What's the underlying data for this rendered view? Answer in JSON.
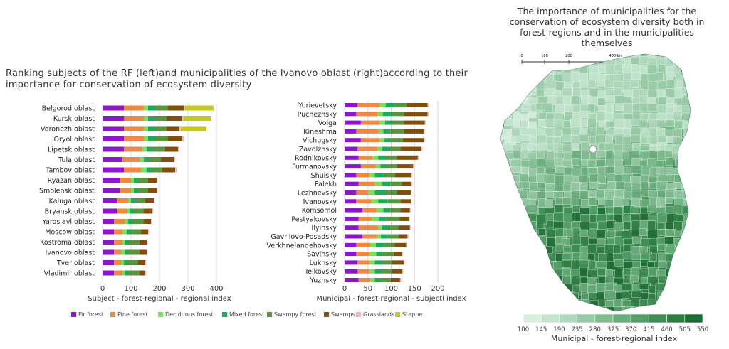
{
  "main_title": "Ranking subjects of the RF (left)and municipalities of the Ivanovo oblast (right)according to their importance for conservation of ecosystem diversity",
  "map_title": "The importance of municipalities for the conservation of ecosystem diversity both in forest-regions and in the municipalities themselves",
  "legend": [
    {
      "name": "Fir forest",
      "color": "#8a17c9"
    },
    {
      "name": "Pine forest",
      "color": "#ee8845"
    },
    {
      "name": "Deciduous forest",
      "color": "#79e159"
    },
    {
      "name": "Mixed forest",
      "color": "#1fa85f"
    },
    {
      "name": "Swampy forest",
      "color": "#5a9440"
    },
    {
      "name": "Swamps",
      "color": "#7f4f0c"
    },
    {
      "name": "Grasslands",
      "color": "#f4b4c3"
    },
    {
      "name": "Steppe",
      "color": "#c6ca1c"
    }
  ],
  "chart_data": [
    {
      "type": "bar",
      "orientation": "horizontal",
      "stacked": true,
      "xlabel": "Subject - forest-regional - regional index",
      "xlim": [
        0,
        400
      ],
      "xticks": [
        0,
        100,
        200,
        300,
        400
      ],
      "categories": [
        "Belgorod oblast",
        "Kursk oblast",
        "Voronezh oblast",
        "Oryol oblast",
        "Lipetsk oblast",
        "Tula oblast",
        "Tambov oblast",
        "Ryazan oblast",
        "Smolensk oblast",
        "Kaluga oblast",
        "Bryansk oblast",
        "Yaroslavl oblast",
        "Moscow oblast",
        "Kostroma oblast",
        "Ivanovo oblast",
        "Tver oblast",
        "Vladimir oblast"
      ],
      "series": [
        {
          "name": "Fir forest",
          "values": [
            75,
            75,
            75,
            75,
            75,
            70,
            75,
            60,
            60,
            50,
            50,
            40,
            40,
            40,
            40,
            40,
            40
          ]
        },
        {
          "name": "Pine forest",
          "values": [
            70,
            70,
            70,
            70,
            65,
            60,
            60,
            40,
            40,
            40,
            35,
            40,
            30,
            30,
            25,
            25,
            30
          ]
        },
        {
          "name": "Deciduous forest",
          "values": [
            15,
            15,
            15,
            15,
            15,
            15,
            20,
            10,
            10,
            10,
            10,
            10,
            15,
            10,
            15,
            10,
            10
          ]
        },
        {
          "name": "Mixed forest",
          "values": [
            25,
            25,
            25,
            25,
            20,
            20,
            20,
            15,
            15,
            15,
            15,
            15,
            15,
            15,
            10,
            10,
            10
          ]
        },
        {
          "name": "Swampy forest",
          "values": [
            45,
            40,
            40,
            45,
            45,
            40,
            35,
            35,
            35,
            35,
            35,
            40,
            35,
            35,
            40,
            40,
            40
          ]
        },
        {
          "name": "Swamps",
          "values": [
            55,
            55,
            45,
            50,
            45,
            45,
            45,
            30,
            30,
            30,
            30,
            25,
            25,
            25,
            25,
            25,
            20
          ]
        },
        {
          "name": "Grasslands",
          "values": [
            5,
            5,
            5,
            5,
            5,
            5,
            5,
            3,
            3,
            3,
            3,
            3,
            3,
            3,
            3,
            3,
            3
          ]
        },
        {
          "name": "Steppe",
          "values": [
            100,
            95,
            90,
            0,
            0,
            0,
            0,
            0,
            0,
            0,
            0,
            0,
            0,
            0,
            0,
            0,
            0
          ]
        }
      ]
    },
    {
      "type": "bar",
      "orientation": "horizontal",
      "stacked": true,
      "xlabel": "Municipal - forest-regional - subjectl index",
      "xlim": [
        0,
        200
      ],
      "xticks": [
        0,
        50,
        100,
        150,
        200
      ],
      "categories": [
        "Yurievetsky",
        "Puchezhsky",
        "Volga",
        "Kineshma",
        "Vichugsky",
        "Zavolzhsky",
        "Rodnikovsky",
        "Furmanovsky",
        "Shuisky",
        "Palekh",
        "Lezhnevsky",
        "Ivanovsky",
        "Komsomol",
        "Pestyakovsky",
        "Ilyinsky",
        "Gavrilovo-Posadsky",
        "Verkhnelandehovsky",
        "Savinsky",
        "Lukhsky",
        "Teikovsky",
        "Yuzhsky"
      ],
      "series": [
        {
          "name": "Fir forest",
          "values": [
            28,
            25,
            35,
            25,
            35,
            28,
            30,
            35,
            25,
            30,
            25,
            25,
            38,
            30,
            30,
            38,
            25,
            25,
            28,
            28,
            30
          ]
        },
        {
          "name": "Pine forest",
          "values": [
            48,
            45,
            40,
            48,
            40,
            42,
            30,
            32,
            28,
            35,
            25,
            32,
            30,
            28,
            42,
            30,
            30,
            28,
            25,
            25,
            25
          ]
        },
        {
          "name": "Deciduous forest",
          "values": [
            12,
            12,
            12,
            10,
            10,
            10,
            12,
            10,
            12,
            15,
            15,
            15,
            15,
            15,
            8,
            10,
            12,
            15,
            12,
            12,
            10
          ]
        },
        {
          "name": "Mixed forest",
          "values": [
            20,
            18,
            15,
            15,
            12,
            15,
            15,
            10,
            18,
            18,
            22,
            20,
            15,
            15,
            15,
            15,
            18,
            12,
            15,
            15,
            12
          ]
        },
        {
          "name": "Swampy forest",
          "values": [
            25,
            28,
            25,
            30,
            28,
            25,
            25,
            25,
            25,
            25,
            25,
            28,
            22,
            30,
            20,
            22,
            22,
            25,
            22,
            22,
            22
          ]
        },
        {
          "name": "Swamps",
          "values": [
            45,
            50,
            45,
            42,
            45,
            45,
            45,
            35,
            35,
            20,
            30,
            22,
            20,
            20,
            25,
            20,
            25,
            18,
            25,
            22,
            20
          ]
        },
        {
          "name": "Grasslands",
          "values": [
            2,
            2,
            2,
            2,
            2,
            2,
            2,
            2,
            2,
            2,
            2,
            2,
            2,
            2,
            2,
            2,
            2,
            2,
            2,
            2,
            2
          ]
        }
      ]
    }
  ],
  "map": {
    "scale_labels": [
      "0",
      "100",
      "200",
      "400 km"
    ],
    "colorbar_label": "Municipal - forest-regional index",
    "colorbar_ticks": [
      "100",
      "145",
      "190",
      "235",
      "280",
      "325",
      "370",
      "415",
      "460",
      "505",
      "550"
    ],
    "colorbar_colors": [
      "#d9f0e1",
      "#c5e5cf",
      "#b0d8bc",
      "#99cba7",
      "#82bd92",
      "#6cae7d",
      "#569f69",
      "#418f56",
      "#2f7f45",
      "#1f6d35"
    ]
  }
}
